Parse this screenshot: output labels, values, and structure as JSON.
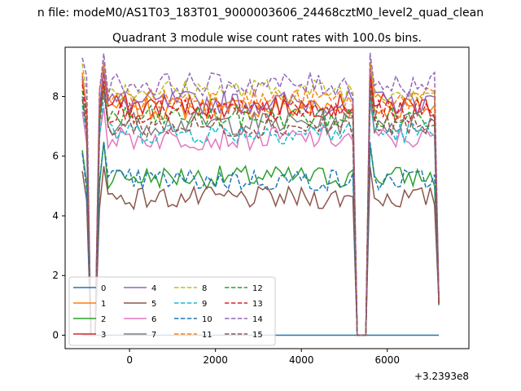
{
  "chart_data": {
    "type": "line",
    "suptitle": "n file: modeM0/AS1T03_183T01_9000003606_24468cztM0_level2_quad_clean",
    "title": "Quadrant 3 module wise count rates with 100.0s bins.",
    "xlabel": "",
    "ylabel": "",
    "x_offset_label": "+3.2393e8",
    "xlim": [
      -1500,
      7900
    ],
    "ylim": [
      -0.45,
      9.65
    ],
    "xticks": [
      0,
      2000,
      4000,
      6000
    ],
    "xtick_labels": [
      "0",
      "2000",
      "4000",
      "6000"
    ],
    "yticks": [
      0,
      2,
      4,
      6,
      8
    ],
    "ytick_labels": [
      "0",
      "2",
      "4",
      "6",
      "8"
    ],
    "grid": false,
    "legend_position": "lower-left",
    "legend_columns": 4,
    "x": {
      "start": -1100,
      "step": 100,
      "count": 84
    },
    "dropouts": [
      {
        "x": [
          -900,
          -800
        ],
        "value": 0
      },
      {
        "x": [
          5300,
          5400,
          5500
        ],
        "value": 0
      }
    ],
    "series": [
      {
        "name": "0",
        "color": "#1f77b4",
        "dash": "solid",
        "level": 0.0
      },
      {
        "name": "1",
        "color": "#ff7f0e",
        "dash": "solid",
        "level": 7.6
      },
      {
        "name": "2",
        "color": "#2ca02c",
        "dash": "solid",
        "level": 5.3
      },
      {
        "name": "3",
        "color": "#d62728",
        "dash": "solid",
        "level": 7.7
      },
      {
        "name": "4",
        "color": "#9467bd",
        "dash": "solid",
        "level": 7.8
      },
      {
        "name": "5",
        "color": "#8c564b",
        "dash": "solid",
        "level": 4.6
      },
      {
        "name": "6",
        "color": "#e377c2",
        "dash": "solid",
        "level": 6.6
      },
      {
        "name": "7",
        "color": "#7f7f7f",
        "dash": "solid",
        "level": 7.1
      },
      {
        "name": "8",
        "color": "#bcbd22",
        "dash": "dashed",
        "level": 8.2
      },
      {
        "name": "9",
        "color": "#17becf",
        "dash": "dashed",
        "level": 6.8
      },
      {
        "name": "10",
        "color": "#1f77b4",
        "dash": "dashed",
        "level": 5.2
      },
      {
        "name": "11",
        "color": "#ff7f0e",
        "dash": "dashed",
        "level": 7.9
      },
      {
        "name": "12",
        "color": "#2ca02c",
        "dash": "dashed",
        "level": 7.3
      },
      {
        "name": "13",
        "color": "#d62728",
        "dash": "dashed",
        "level": 7.5
      },
      {
        "name": "14",
        "color": "#9467bd",
        "dash": "dashed",
        "level": 8.4
      },
      {
        "name": "15",
        "color": "#8c564b",
        "dash": "dashed",
        "level": 7.0
      }
    ]
  }
}
